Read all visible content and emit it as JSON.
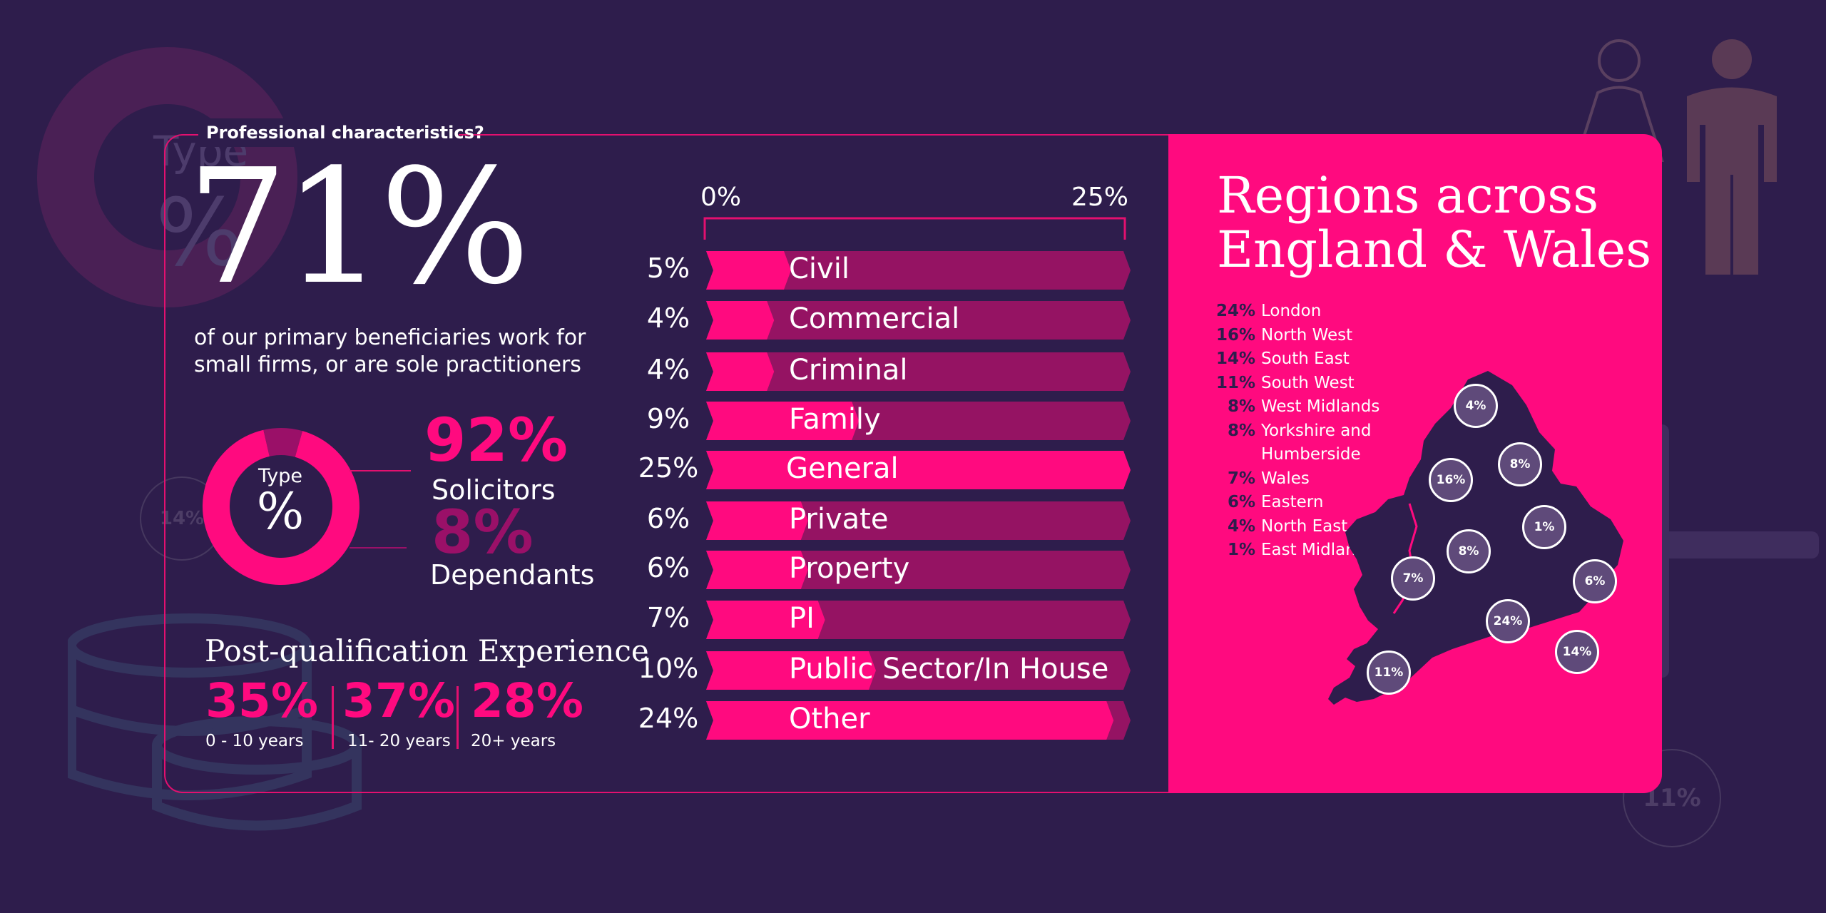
{
  "header": {
    "title": "Professional characteristics?"
  },
  "headline": {
    "percent": "71%",
    "description": "of our primary beneficiaries work for small firms, or are sole practitioners"
  },
  "type_breakdown": {
    "center_label": "Type",
    "center_symbol": "%",
    "items": [
      {
        "percent": "92%",
        "label": "Solicitors",
        "value": 92,
        "color": "#ff0a7f"
      },
      {
        "percent": "8%",
        "label": "Dependants",
        "value": 8,
        "color": "#9a1068"
      }
    ]
  },
  "pqe": {
    "title": "Post-qualification Experience",
    "items": [
      {
        "percent": "35%",
        "label": "0 - 10 years"
      },
      {
        "percent": "37%",
        "label": "11- 20 years"
      },
      {
        "percent": "28%",
        "label": "20+ years"
      }
    ]
  },
  "chart_data": {
    "type": "bar",
    "axis_labels": [
      "0%",
      "25%"
    ],
    "xlim": [
      0,
      25
    ],
    "categories": [
      "Civil",
      "Commercial",
      "Criminal",
      "Family",
      "General",
      "Private",
      "Property",
      "PI",
      "Public Sector/In House",
      "Other"
    ],
    "values": [
      5,
      4,
      4,
      9,
      25,
      6,
      6,
      7,
      10,
      24
    ],
    "value_labels": [
      "5%",
      "4%",
      "4%",
      "9%",
      "25%",
      "6%",
      "6%",
      "7%",
      "10%",
      "24%"
    ],
    "colors": {
      "fill": "#ff0a7f",
      "track": "#951363"
    }
  },
  "regions": {
    "title_line1": "Regions across",
    "title_line2": "England & Wales",
    "list": [
      {
        "percent": "24%",
        "name": "London"
      },
      {
        "percent": "16%",
        "name": "North West"
      },
      {
        "percent": "14%",
        "name": "South East"
      },
      {
        "percent": "11%",
        "name": "South West"
      },
      {
        "percent": "8%",
        "name": "West Midlands"
      },
      {
        "percent": "8%",
        "name": "Yorkshire and"
      },
      {
        "percent": "",
        "name": "Humberside"
      },
      {
        "percent": "7%",
        "name": "Wales"
      },
      {
        "percent": "6%",
        "name": "Eastern"
      },
      {
        "percent": "4%",
        "name": "North East"
      },
      {
        "percent": "1%",
        "name": "East Midlands"
      }
    ],
    "map_labels": {
      "north_east": "4%",
      "yorkshire": "8%",
      "north_west": "16%",
      "east_midlands": "1%",
      "west_midlands": "8%",
      "wales": "7%",
      "eastern": "6%",
      "london": "24%",
      "south_east": "14%",
      "south_west": "11%"
    }
  },
  "background": {
    "donut_type": "Type",
    "donut_pct": "%",
    "circle_a": "14%",
    "circle_b": "11%"
  },
  "colors": {
    "background": "#2e1d4c",
    "accent": "#ff0a7f",
    "dark_accent": "#9a1068"
  }
}
